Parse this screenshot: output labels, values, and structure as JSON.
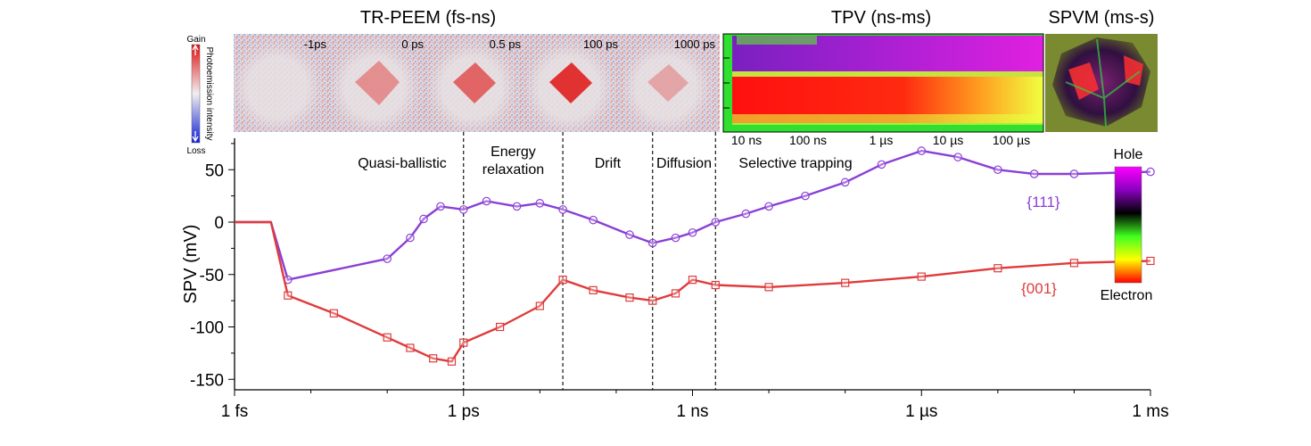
{
  "chart_data": {
    "type": "scatter",
    "ylabel": "SPV (mV)",
    "xlabel": "",
    "x_scale": "log",
    "xlim": [
      "1 fs",
      "1 ms"
    ],
    "ylim": [
      -160,
      80
    ],
    "x_ticks": [
      "1 fs",
      "1 ps",
      "1 ns",
      "1 µs",
      "1 ms"
    ],
    "y_ticks": [
      "-150",
      "-100",
      "-50",
      "0",
      "50"
    ],
    "boundaries": [
      "1 ps",
      "20 ps",
      "300 ps",
      "2 ns"
    ],
    "regions": [
      {
        "label": "Quasi-ballistic"
      },
      {
        "label": "Energy\nrelaxation"
      },
      {
        "label": "Drift"
      },
      {
        "label": "Diffusion"
      },
      {
        "label": "Selective  trapping"
      }
    ],
    "series": [
      {
        "name": "{111}",
        "color": "#8a3fd6",
        "marker": "circle",
        "points": [
          [
            "1 fs",
            0
          ],
          [
            "3 fs",
            0
          ],
          [
            "5 fs",
            -55
          ],
          [
            "100 fs",
            -35
          ],
          [
            "200 fs",
            -15
          ],
          [
            "300 fs",
            3
          ],
          [
            "500 fs",
            15
          ],
          [
            "1 ps",
            12
          ],
          [
            "2 ps",
            20
          ],
          [
            "5 ps",
            15
          ],
          [
            "10 ps",
            18
          ],
          [
            "20 ps",
            12
          ],
          [
            "50 ps",
            2
          ],
          [
            "150 ps",
            -12
          ],
          [
            "300 ps",
            -20
          ],
          [
            "600 ps",
            -15
          ],
          [
            "1 ns",
            -10
          ],
          [
            "2 ns",
            0
          ],
          [
            "5 ns",
            8
          ],
          [
            "10 ns",
            15
          ],
          [
            "30 ns",
            25
          ],
          [
            "100 ns",
            38
          ],
          [
            "300 ns",
            55
          ],
          [
            "1 µs",
            68
          ],
          [
            "3 µs",
            62
          ],
          [
            "10 µs",
            50
          ],
          [
            "30 µs",
            46
          ],
          [
            "100 µs",
            46
          ],
          [
            "1 ms",
            48
          ]
        ]
      },
      {
        "name": "{001}",
        "color": "#e03b3b",
        "marker": "square",
        "points": [
          [
            "1 fs",
            0
          ],
          [
            "3 fs",
            0
          ],
          [
            "5 fs",
            -70
          ],
          [
            "20 fs",
            -87
          ],
          [
            "100 fs",
            -110
          ],
          [
            "200 fs",
            -120
          ],
          [
            "400 fs",
            -130
          ],
          [
            "700 fs",
            -133
          ],
          [
            "1 ps",
            -115
          ],
          [
            "3 ps",
            -100
          ],
          [
            "10 ps",
            -80
          ],
          [
            "20 ps",
            -55
          ],
          [
            "50 ps",
            -65
          ],
          [
            "150 ps",
            -72
          ],
          [
            "300 ps",
            -75
          ],
          [
            "600 ps",
            -68
          ],
          [
            "1 ns",
            -55
          ],
          [
            "2 ns",
            -60
          ],
          [
            "10 ns",
            -62
          ],
          [
            "100 ns",
            -58
          ],
          [
            "1 µs",
            -52
          ],
          [
            "10 µs",
            -44
          ],
          [
            "100 µs",
            -39
          ],
          [
            "1 ms",
            -37
          ]
        ]
      }
    ]
  },
  "peem": {
    "title": "TR-PEEM (fs-ns)",
    "frames": [
      "-1ps",
      "0 ps",
      "0.5 ps",
      "100 ps",
      "1000 ps"
    ],
    "colorbar": {
      "top": "Gain",
      "bottom": "Loss",
      "axis_label": "Photoemission intensity"
    }
  },
  "tpv": {
    "title": "TPV (ns-ms)",
    "ticks": [
      "10 ns",
      "100 ns",
      "1 µs",
      "10 µs",
      "100 µs"
    ]
  },
  "spvm": {
    "title": "SPVM (ms-s)"
  },
  "hole_colorbar": {
    "top": "Hole",
    "bottom": "Electron"
  }
}
